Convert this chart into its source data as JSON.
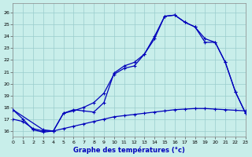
{
  "title": "Graphe des températures (°c)",
  "bg_color": "#c8eeea",
  "grid_color": "#99cccc",
  "line_color": "#0000bb",
  "xlim": [
    0,
    23
  ],
  "ylim": [
    15.5,
    26.8
  ],
  "xticks": [
    0,
    1,
    2,
    3,
    4,
    5,
    6,
    7,
    8,
    9,
    10,
    11,
    12,
    13,
    14,
    15,
    16,
    17,
    18,
    19,
    20,
    21,
    22,
    23
  ],
  "yticks": [
    16,
    17,
    18,
    19,
    20,
    21,
    22,
    23,
    24,
    25,
    26
  ],
  "xlabel_color": "#0000bb",
  "line1_x": [
    0,
    1,
    2,
    3,
    4,
    5,
    6,
    7,
    8,
    9,
    10,
    11,
    12,
    13,
    14,
    15,
    16,
    17,
    18,
    19,
    20,
    21,
    22,
    23
  ],
  "line1_y": [
    17.8,
    17.0,
    16.1,
    15.9,
    16.0,
    17.5,
    17.8,
    17.7,
    17.6,
    18.4,
    20.9,
    21.5,
    21.8,
    22.5,
    24.0,
    25.7,
    25.8,
    25.2,
    24.8,
    23.8,
    23.5,
    21.8,
    19.3,
    17.5
  ],
  "line2_x": [
    0,
    3,
    4,
    5,
    6,
    7,
    8,
    9,
    10,
    11,
    12,
    13,
    14,
    15,
    16,
    17,
    18,
    19,
    20,
    21,
    22,
    23
  ],
  "line2_y": [
    17.8,
    16.1,
    16.0,
    17.5,
    17.7,
    18.0,
    18.4,
    19.2,
    20.8,
    21.3,
    21.5,
    22.5,
    23.8,
    25.7,
    25.8,
    25.2,
    24.8,
    23.5,
    23.5,
    21.8,
    19.3,
    17.5
  ],
  "line3_x": [
    0,
    1,
    2,
    3,
    4,
    5,
    6,
    7,
    8,
    9,
    10,
    11,
    12,
    13,
    14,
    15,
    16,
    17,
    18,
    19,
    20,
    21,
    22,
    23
  ],
  "line3_y": [
    17.0,
    16.8,
    16.2,
    16.0,
    16.0,
    16.2,
    16.4,
    16.6,
    16.8,
    17.0,
    17.2,
    17.3,
    17.4,
    17.5,
    17.6,
    17.7,
    17.8,
    17.85,
    17.9,
    17.9,
    17.85,
    17.8,
    17.75,
    17.7
  ]
}
